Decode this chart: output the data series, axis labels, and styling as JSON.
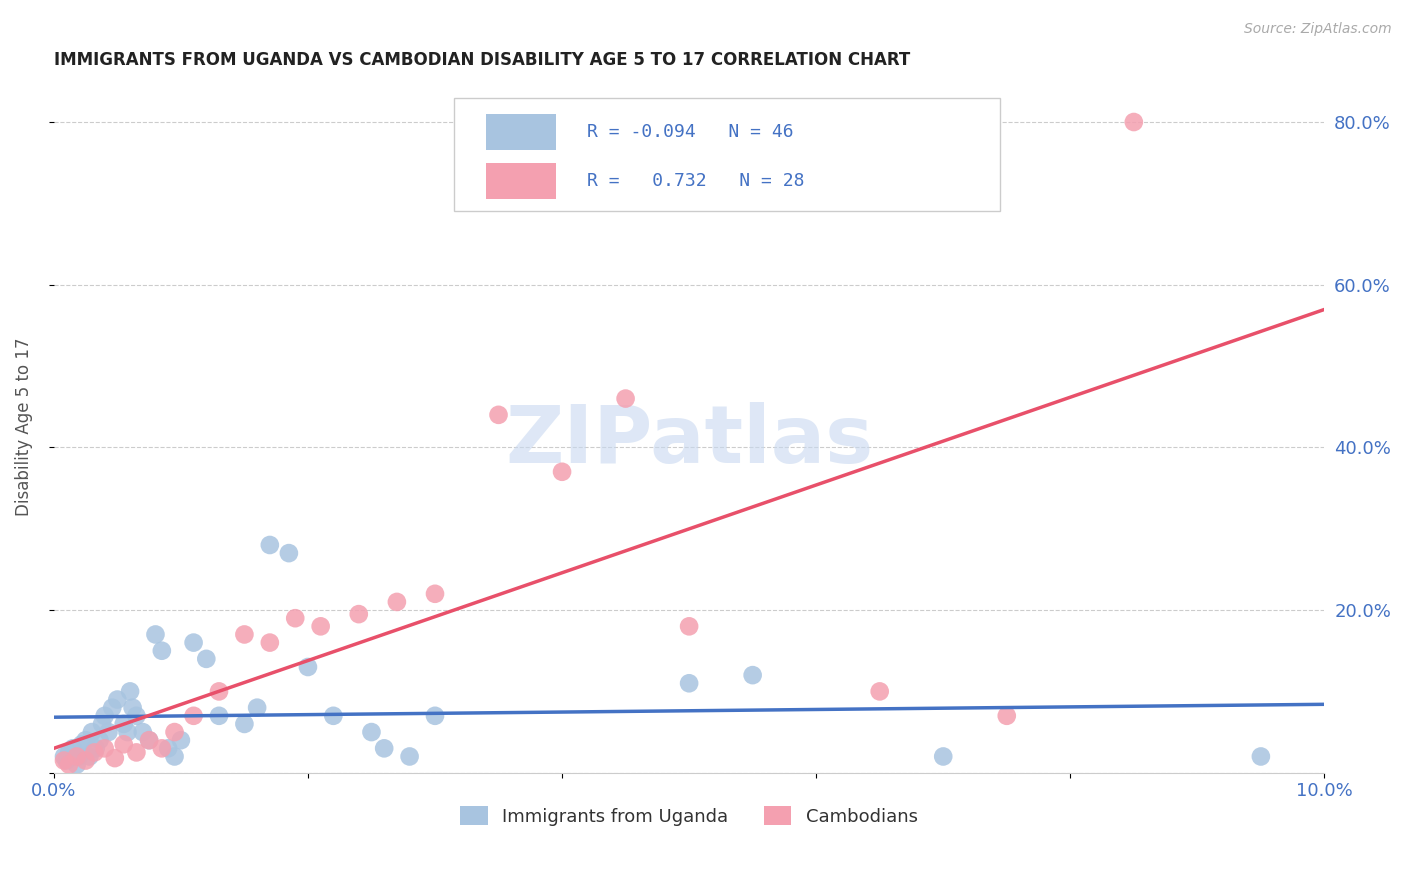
{
  "title": "IMMIGRANTS FROM UGANDA VS CAMBODIAN DISABILITY AGE 5 TO 17 CORRELATION CHART",
  "source": "Source: ZipAtlas.com",
  "ylabel": "Disability Age 5 to 17",
  "xlim": [
    0.0,
    10.0
  ],
  "ylim": [
    0.0,
    85.0
  ],
  "grid_color": "#cccccc",
  "background_color": "#ffffff",
  "uganda_color": "#a8c4e0",
  "cambodian_color": "#f4a0b0",
  "uganda_line_color": "#4472c4",
  "cambodian_line_color": "#e8506a",
  "legend_R_uganda": "-0.094",
  "legend_N_uganda": "46",
  "legend_R_cambodian": "0.732",
  "legend_N_cambodian": "28",
  "watermark": "ZIPatlas",
  "watermark_color": "#c8d8f0",
  "uganda_x": [
    0.08,
    0.1,
    0.12,
    0.15,
    0.18,
    0.2,
    0.22,
    0.25,
    0.28,
    0.3,
    0.33,
    0.36,
    0.38,
    0.4,
    0.43,
    0.46,
    0.5,
    0.55,
    0.58,
    0.6,
    0.62,
    0.65,
    0.7,
    0.75,
    0.8,
    0.85,
    0.9,
    0.95,
    1.0,
    1.1,
    1.2,
    1.3,
    1.5,
    1.6,
    1.7,
    1.85,
    2.0,
    2.2,
    2.5,
    2.6,
    2.8,
    3.0,
    5.0,
    5.5,
    7.0,
    9.5
  ],
  "uganda_y": [
    2.0,
    1.5,
    2.5,
    3.0,
    1.0,
    2.0,
    3.5,
    4.0,
    2.0,
    5.0,
    3.0,
    4.0,
    6.0,
    7.0,
    5.0,
    8.0,
    9.0,
    6.0,
    5.0,
    10.0,
    8.0,
    7.0,
    5.0,
    4.0,
    17.0,
    15.0,
    3.0,
    2.0,
    4.0,
    16.0,
    14.0,
    7.0,
    6.0,
    8.0,
    28.0,
    27.0,
    13.0,
    7.0,
    5.0,
    3.0,
    2.0,
    7.0,
    11.0,
    12.0,
    2.0,
    2.0
  ],
  "cambodian_x": [
    0.08,
    0.12,
    0.18,
    0.25,
    0.32,
    0.4,
    0.48,
    0.55,
    0.65,
    0.75,
    0.85,
    0.95,
    1.1,
    1.3,
    1.5,
    1.7,
    1.9,
    2.1,
    2.4,
    2.7,
    3.0,
    3.5,
    4.0,
    4.5,
    5.0,
    6.5,
    7.5,
    8.5
  ],
  "cambodian_y": [
    1.5,
    1.0,
    2.0,
    1.5,
    2.5,
    3.0,
    1.8,
    3.5,
    2.5,
    4.0,
    3.0,
    5.0,
    7.0,
    10.0,
    17.0,
    16.0,
    19.0,
    18.0,
    19.5,
    21.0,
    22.0,
    44.0,
    37.0,
    46.0,
    18.0,
    10.0,
    7.0,
    80.0
  ]
}
